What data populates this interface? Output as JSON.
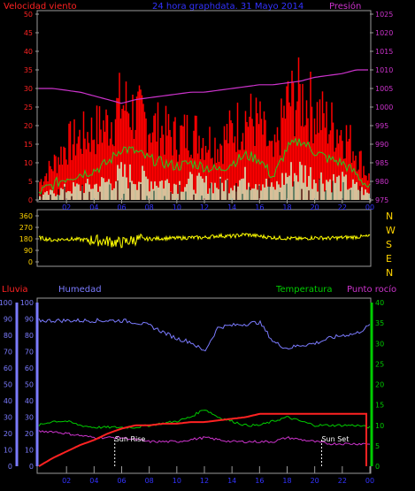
{
  "colors": {
    "background": "#000000",
    "frame": "#9a9a9a",
    "wind": "#ff0000",
    "wind_avg": "#22cc22",
    "wind_light": "#ccffcc",
    "pressure": "#cc33cc",
    "direction": "#ffff00",
    "rain": "#ff2222",
    "humidity": "#7b7bff",
    "temperature": "#00cc00",
    "dewpoint": "#cc33cc",
    "sun_marker": "#ffffff",
    "label_blue": "#3333ff",
    "label_magenta": "#cc33cc",
    "label_red": "#ff2222",
    "label_green": "#00cc00",
    "label_yellow": "#ffd400"
  },
  "header": {
    "left": "Velocidad viento",
    "center": "24 hora graphdata. 31 Mayo 2014",
    "right": "Presión"
  },
  "lower_header": {
    "rain": "Lluvia",
    "humidity": "Humedad",
    "temperature": "Temperatura",
    "dewpoint": "Punto rocío"
  },
  "direction_labels": [
    "N",
    "W",
    "S",
    "E",
    "N"
  ],
  "x_ticks": [
    "02",
    "04",
    "06",
    "08",
    "10",
    "12",
    "14",
    "16",
    "18",
    "20",
    "22",
    "00"
  ],
  "sun_labels": {
    "rise": "Sun Rise",
    "set": "Sun Set"
  },
  "chart_data": [
    {
      "type": "line",
      "x_ticks": [
        "02",
        "04",
        "06",
        "08",
        "10",
        "12",
        "14",
        "16",
        "18",
        "20",
        "22",
        "00"
      ],
      "y_left_ticks": [
        0,
        5,
        10,
        15,
        20,
        25,
        30,
        35,
        40,
        45,
        50
      ],
      "y_left_range": [
        0,
        50
      ],
      "y_right_ticks": [
        975,
        980,
        985,
        990,
        995,
        1000,
        1005,
        1010,
        1015,
        1020,
        1025
      ],
      "y_right_range": [
        975,
        1025
      ],
      "series": [
        {
          "name": "Velocidad viento",
          "axis": "left",
          "style": "gust bars",
          "x": [
            0,
            1,
            2,
            3,
            4,
            5,
            6,
            7,
            8,
            9,
            10,
            11,
            12,
            13,
            14,
            15,
            16,
            17,
            18,
            19,
            20,
            21,
            22,
            23,
            24
          ],
          "values": [
            5,
            10,
            16,
            18,
            20,
            22,
            28,
            25,
            22,
            20,
            18,
            20,
            18,
            16,
            20,
            24,
            22,
            12,
            28,
            30,
            26,
            22,
            20,
            14,
            6
          ]
        },
        {
          "axis": "left",
          "style": "average line",
          "x": [
            0,
            1,
            2,
            3,
            4,
            5,
            6,
            7,
            8,
            9,
            10,
            11,
            12,
            13,
            14,
            15,
            16,
            17,
            18,
            19,
            20,
            21,
            22,
            23,
            24
          ],
          "values": [
            2,
            4,
            6,
            7,
            8,
            10,
            14,
            13,
            11,
            10,
            9,
            10,
            9,
            8,
            10,
            12,
            11,
            6,
            14,
            16,
            13,
            11,
            10,
            7,
            3
          ]
        },
        {
          "name": "Presión",
          "axis": "right",
          "x": [
            0,
            1,
            2,
            3,
            4,
            5,
            6,
            7,
            8,
            9,
            10,
            11,
            12,
            13,
            14,
            15,
            16,
            17,
            18,
            19,
            20,
            21,
            22,
            23,
            24
          ],
          "values": [
            1005,
            1005,
            1004.5,
            1004,
            1003,
            1002,
            1001,
            1002,
            1002.5,
            1003,
            1003.5,
            1004,
            1004,
            1004.5,
            1005,
            1005.5,
            1006,
            1006,
            1006.5,
            1007,
            1008,
            1008.5,
            1009,
            1010,
            1010
          ]
        }
      ]
    },
    {
      "type": "line",
      "x_ticks": [
        "02",
        "04",
        "06",
        "08",
        "10",
        "12",
        "14",
        "16",
        "18",
        "20",
        "22",
        "00"
      ],
      "y_ticks": [
        0,
        90,
        180,
        270,
        360
      ],
      "y_range": [
        0,
        360
      ],
      "series": [
        {
          "axis": "left",
          "x": [
            0,
            1,
            2,
            3,
            4,
            5,
            6,
            7,
            8,
            9,
            10,
            11,
            12,
            13,
            14,
            15,
            16,
            17,
            18,
            19,
            20,
            21,
            22,
            23,
            24
          ],
          "values": [
            190,
            170,
            180,
            175,
            170,
            160,
            150,
            175,
            180,
            185,
            185,
            190,
            190,
            205,
            200,
            215,
            200,
            190,
            185,
            180,
            190,
            185,
            190,
            195,
            200
          ]
        }
      ]
    },
    {
      "type": "line",
      "x_ticks": [
        "02",
        "04",
        "06",
        "08",
        "10",
        "12",
        "14",
        "16",
        "18",
        "20",
        "22",
        "00"
      ],
      "y_left_outer_ticks": [
        0,
        10,
        20,
        30,
        40,
        50,
        60,
        70,
        80,
        90,
        100
      ],
      "y_left_inner_ticks": [
        0,
        10,
        20,
        30,
        40,
        50,
        60,
        70,
        80,
        90,
        100
      ],
      "y_right_ticks": [
        0,
        5,
        10,
        15,
        20,
        25,
        30,
        35,
        40
      ],
      "y_left_range": [
        0,
        100
      ],
      "y_right_range": [
        0,
        40
      ],
      "series": [
        {
          "name": "Humedad",
          "axis": "left",
          "x": [
            0,
            1,
            2,
            3,
            4,
            5,
            6,
            7,
            8,
            9,
            10,
            11,
            12,
            13,
            14,
            15,
            16,
            17,
            18,
            19,
            20,
            21,
            22,
            23,
            24
          ],
          "values": [
            89,
            89,
            89,
            89,
            89,
            89,
            89,
            88,
            86,
            82,
            78,
            76,
            70,
            85,
            86,
            87,
            88,
            76,
            72,
            74,
            75,
            78,
            80,
            81,
            86
          ]
        },
        {
          "name": "Lluvia",
          "axis": "left",
          "x": [
            0,
            1,
            2,
            3,
            4,
            5,
            6,
            7,
            8,
            9,
            10,
            11,
            12,
            13,
            14,
            15,
            16,
            17,
            18,
            19,
            20,
            21,
            22,
            23,
            24
          ],
          "values": [
            0,
            5,
            9,
            13,
            16,
            20,
            23,
            25,
            25,
            26,
            26,
            27,
            27,
            28,
            29,
            30,
            32,
            32,
            32,
            32,
            32,
            32,
            32,
            32,
            0
          ]
        },
        {
          "name": "Temperatura",
          "axis": "right",
          "x": [
            0,
            1,
            2,
            3,
            4,
            5,
            6,
            7,
            8,
            9,
            10,
            11,
            12,
            13,
            14,
            15,
            16,
            17,
            18,
            19,
            20,
            21,
            22,
            23,
            24
          ],
          "values": [
            10,
            11,
            11,
            10,
            9.5,
            9.5,
            9.5,
            9.5,
            10,
            10.5,
            11,
            12,
            14,
            12,
            11,
            10,
            10,
            11,
            12,
            11,
            10,
            10,
            10,
            10,
            9.5
          ]
        },
        {
          "name": "Punto rocío",
          "axis": "right",
          "x": [
            0,
            1,
            2,
            3,
            4,
            5,
            6,
            7,
            8,
            9,
            10,
            11,
            12,
            13,
            14,
            15,
            16,
            17,
            18,
            19,
            20,
            21,
            22,
            23,
            24
          ],
          "values": [
            8.5,
            8.5,
            8,
            7.5,
            7,
            7,
            7,
            6.5,
            6,
            6,
            6,
            6.5,
            7,
            6.5,
            6,
            6,
            6,
            6,
            7,
            6.5,
            6,
            5.5,
            5.5,
            5.5,
            5.5
          ]
        }
      ],
      "annotations": [
        {
          "text": "Sun Rise",
          "x": 5.5
        },
        {
          "text": "Sun Set",
          "x": 20.5
        }
      ]
    }
  ]
}
